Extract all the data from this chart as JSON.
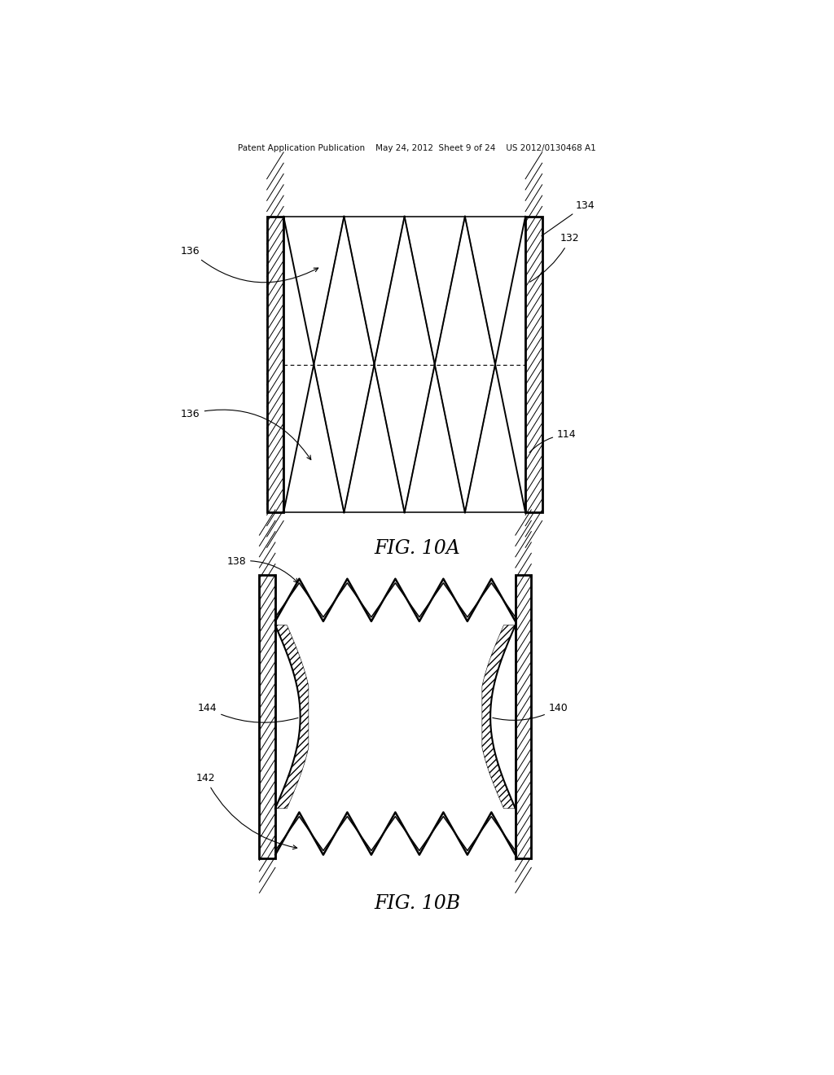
{
  "bg_color": "#ffffff",
  "line_color": "#000000",
  "header_text": "Patent Application Publication    May 24, 2012  Sheet 9 of 24    US 2012/0130468 A1",
  "fig10a_label": "FIG. 10A",
  "fig10b_label": "FIG. 10B"
}
